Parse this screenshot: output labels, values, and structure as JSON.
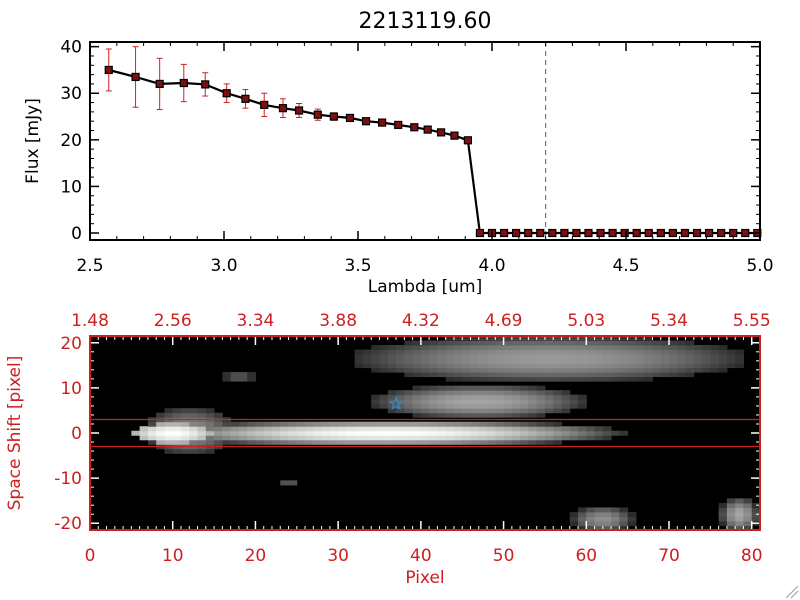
{
  "colors": {
    "axis_top": "#000000",
    "axis_bottom": "#cc1f1f",
    "error_bar": "#cc2020",
    "marker_fill": "#7a1010",
    "reference_line": "#2a8ad4",
    "star": "#2a8ad4",
    "band": "#cc1f1f"
  },
  "chart_data": [
    {
      "type": "line",
      "title": "2213119.60",
      "xlabel": "Lambda [um]",
      "ylabel": "Flux [mJy]",
      "xlim": [
        2.5,
        5.0
      ],
      "ylim": [
        -1.5,
        41
      ],
      "xticks": [
        "2.5",
        "3.0",
        "3.5",
        "4.0",
        "4.5",
        "5.0"
      ],
      "yticks": [
        "0",
        "10",
        "20",
        "30",
        "40"
      ],
      "series": [
        {
          "x": [
            2.57,
            2.67,
            2.76,
            2.85,
            2.93,
            3.01,
            3.08,
            3.15,
            3.22,
            3.28,
            3.35,
            3.41,
            3.47,
            3.53,
            3.59,
            3.65,
            3.71,
            3.76,
            3.81,
            3.86,
            3.91,
            3.955,
            4.0,
            4.045,
            4.09,
            4.135,
            4.18,
            4.225,
            4.27,
            4.315,
            4.36,
            4.405,
            4.45,
            4.495,
            4.54,
            4.585,
            4.63,
            4.675,
            4.72,
            4.765,
            4.81,
            4.855,
            4.9,
            4.945,
            4.99
          ],
          "y": [
            35.0,
            33.5,
            32.0,
            32.2,
            31.9,
            30.0,
            28.8,
            27.5,
            26.8,
            26.3,
            25.4,
            25.0,
            24.7,
            24.0,
            23.7,
            23.2,
            22.7,
            22.2,
            21.6,
            20.9,
            19.9,
            0,
            0,
            0,
            0,
            0,
            0,
            0,
            0,
            0,
            0,
            0,
            0,
            0,
            0,
            0,
            0,
            0,
            0,
            0,
            0,
            0,
            0,
            0,
            0
          ],
          "yerr": [
            4.5,
            6.5,
            5.5,
            4.0,
            2.5,
            2.0,
            2.0,
            2.5,
            2.0,
            1.5,
            1.2,
            0.8,
            0.7,
            0.6,
            0.5,
            0.5,
            0.5,
            0.5,
            0.5,
            0.5,
            0.5,
            0,
            0,
            0,
            0,
            0,
            0,
            0,
            0,
            0,
            0,
            0,
            0,
            0,
            0,
            0,
            0,
            0,
            0,
            0,
            0,
            0,
            0,
            0,
            0
          ]
        }
      ],
      "reference_line_x": 4.2,
      "grid": false
    },
    {
      "type": "heatmap",
      "xlabel": "Pixel",
      "ylabel": "Space Shift [pixel]",
      "xlim": [
        0,
        81
      ],
      "ylim": [
        -21.5,
        21.5
      ],
      "xticks": [
        "0",
        "10",
        "20",
        "30",
        "40",
        "50",
        "60",
        "70",
        "80"
      ],
      "yticks": [
        "-20",
        "-10",
        "0",
        "10",
        "20"
      ],
      "top_axis_labels": [
        "1.48",
        "2.56",
        "3.34",
        "3.88",
        "4.32",
        "4.69",
        "5.03",
        "5.34",
        "5.55"
      ],
      "band_y": [
        -3,
        3
      ],
      "marker": {
        "x": 37,
        "y": 6.5
      },
      "sources": [
        {
          "x0": 6,
          "x1": 66,
          "y0": -3,
          "y1": 3,
          "peak": 1.0
        },
        {
          "x0": 6,
          "x1": 18,
          "y0": -5,
          "y1": 6,
          "peak": 0.5
        },
        {
          "x0": 33,
          "x1": 61,
          "y0": 3,
          "y1": 11,
          "peak": 0.6
        },
        {
          "x0": 30,
          "x1": 81,
          "y0": 11,
          "y1": 22,
          "peak": 0.55
        },
        {
          "x0": 16,
          "x1": 20,
          "y0": 11,
          "y1": 14,
          "peak": 0.25
        },
        {
          "x0": 58,
          "x1": 66,
          "y0": -22,
          "y1": -16,
          "peak": 0.5
        },
        {
          "x0": 76,
          "x1": 81,
          "y0": -22,
          "y1": -14,
          "peak": 0.6
        },
        {
          "x0": 23,
          "x1": 25,
          "y0": -12,
          "y1": -10,
          "peak": 0.3
        }
      ]
    }
  ]
}
